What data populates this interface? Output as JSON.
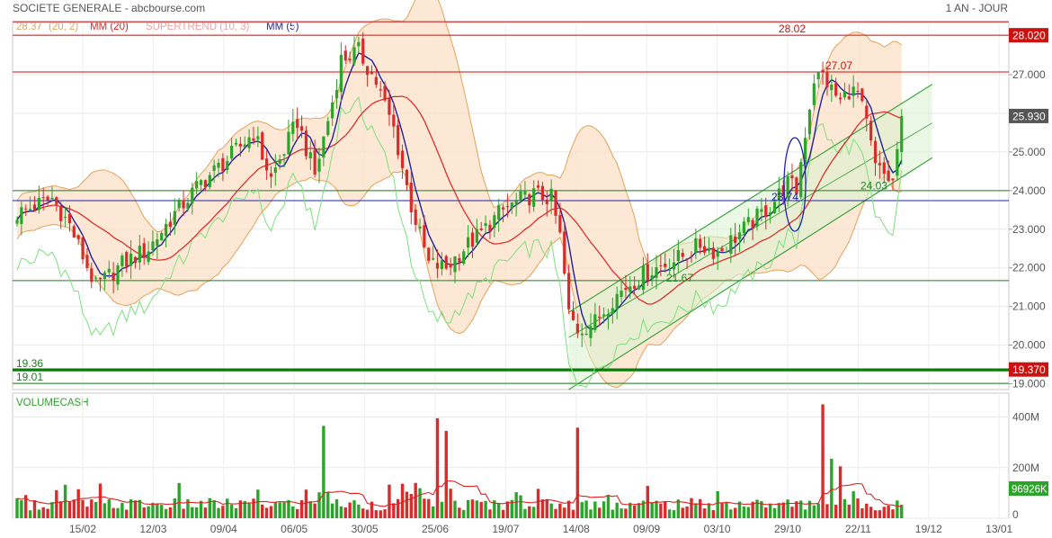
{
  "header": {
    "title": "SOCIETE GENERALE - abcbourse.com",
    "period": "1 AN - JOUR"
  },
  "legend": [
    {
      "label": "28.37",
      "color": "#e4a25a"
    },
    {
      "label": "(20, 2)",
      "color": "#e4a25a"
    },
    {
      "label": "MM (20)",
      "color": "#dd2222"
    },
    {
      "label": "SUPERTREND (10, 3)",
      "color": "#f0a0a0"
    },
    {
      "label": "MM (5)",
      "color": "#22229a"
    }
  ],
  "chart_data": [
    {
      "type": "candlestick",
      "title": "SOCIETE GENERALE",
      "y_ticks": [
        "19.000",
        "20.000",
        "21.000",
        "22.000",
        "23.000",
        "24.000",
        "25.000",
        "26.000",
        "27.000",
        "28.000"
      ],
      "ylim": [
        18.85,
        28.35
      ],
      "x_ticks": [
        "15/02",
        "12/03",
        "09/04",
        "06/05",
        "30/05",
        "25/06",
        "19/07",
        "14/08",
        "09/09",
        "03/10",
        "29/10",
        "22/11",
        "19/12",
        "13/01"
      ],
      "last_close": 25.93,
      "last_close_label": "25.930",
      "anchor_closes": [
        [
          0,
          23.4
        ],
        [
          8,
          23.8
        ],
        [
          12,
          23.1
        ],
        [
          18,
          21.5
        ],
        [
          24,
          22.1
        ],
        [
          30,
          22.5
        ],
        [
          36,
          23.4
        ],
        [
          42,
          24.2
        ],
        [
          48,
          24.8
        ],
        [
          54,
          25.5
        ],
        [
          58,
          24.3
        ],
        [
          64,
          25.8
        ],
        [
          68,
          24.4
        ],
        [
          72,
          26.3
        ],
        [
          74,
          27.4
        ],
        [
          78,
          27.6
        ],
        [
          82,
          26.8
        ],
        [
          86,
          25.6
        ],
        [
          90,
          23.6
        ],
        [
          94,
          22.1
        ],
        [
          98,
          22.0
        ],
        [
          102,
          22.5
        ],
        [
          106,
          22.9
        ],
        [
          110,
          23.4
        ],
        [
          114,
          23.7
        ],
        [
          118,
          23.9
        ],
        [
          122,
          23.8
        ],
        [
          124,
          22.8
        ],
        [
          126,
          20.8
        ],
        [
          128,
          20.4
        ],
        [
          132,
          20.6
        ],
        [
          136,
          21.2
        ],
        [
          140,
          21.6
        ],
        [
          144,
          21.9
        ],
        [
          148,
          22.1
        ],
        [
          152,
          22.3
        ],
        [
          156,
          22.6
        ],
        [
          160,
          22.4
        ],
        [
          164,
          22.8
        ],
        [
          168,
          23.2
        ],
        [
          172,
          23.6
        ],
        [
          176,
          24.2
        ],
        [
          178,
          24.0
        ],
        [
          180,
          25.5
        ],
        [
          182,
          26.9
        ],
        [
          184,
          27.0
        ],
        [
          186,
          26.6
        ],
        [
          188,
          26.3
        ],
        [
          190,
          26.6
        ],
        [
          192,
          26.5
        ],
        [
          194,
          25.7
        ],
        [
          196,
          24.6
        ],
        [
          198,
          24.4
        ],
        [
          200,
          24.2
        ],
        [
          202,
          25.93
        ]
      ],
      "indicators": [
        "Bollinger (20, 2)",
        "MM (20)",
        "SUPERTREND (10, 3)",
        "MM (5)"
      ],
      "annotations": [
        {
          "label": "28.02",
          "value": 28.02,
          "color": "#cc1111"
        },
        {
          "label": "27.07",
          "value": 27.07,
          "color": "#cc1111"
        },
        {
          "label": "23.74",
          "value": 23.74,
          "color": "#2222aa"
        },
        {
          "label": "21.67",
          "value": 21.67,
          "color": "#228822"
        },
        {
          "label": "24.03",
          "value": 24.03,
          "color": "#228822"
        },
        {
          "label": "19.36",
          "value": 19.36,
          "color": "#1e7d1e"
        },
        {
          "label": "19.01",
          "value": 19.01,
          "color": "#1e7d1e"
        }
      ],
      "horizontal_lines": [
        {
          "value": 28.37,
          "color": "#cc1111"
        },
        {
          "value": 28.02,
          "color": "#cc1111"
        },
        {
          "value": 27.07,
          "color": "#cc1111"
        },
        {
          "value": 24.0,
          "color": "#1e7d1e"
        },
        {
          "value": 23.74,
          "color": "#2222aa"
        },
        {
          "value": 21.67,
          "color": "#1e7d1e"
        },
        {
          "value": 19.36,
          "color": "#0b7a0b"
        },
        {
          "value": 19.01,
          "color": "#1e7d1e"
        }
      ],
      "price_tags": [
        {
          "label": "28.020",
          "value": 28.02,
          "bg": "#cc1111"
        },
        {
          "label": "25.930",
          "value": 25.93,
          "bg": "#555555"
        },
        {
          "label": "19.370",
          "value": 19.37,
          "bg": "#cc1111"
        }
      ],
      "colors": {
        "up": "#2aa52a",
        "down": "#d92b2b",
        "bollinger": "#e4a25a",
        "mm20": "#dd2222",
        "mm5": "#22229a",
        "supertrend": "#7be07b",
        "channel": "#2e9e2e"
      }
    },
    {
      "type": "bar",
      "title": "VOLUMECASH",
      "y_ticks": [
        "400M",
        "200M",
        "0"
      ],
      "ylim": [
        0,
        480
      ],
      "last_value_label": "96926K",
      "spikes": [
        [
          70,
          365
        ],
        [
          96,
          395
        ],
        [
          98,
          345
        ],
        [
          128,
          358
        ],
        [
          184,
          450
        ],
        [
          186,
          235
        ],
        [
          188,
          205
        ]
      ],
      "colors": {
        "up": "#2aa52a",
        "down": "#d92b2b",
        "average": "#dd2222"
      }
    }
  ]
}
